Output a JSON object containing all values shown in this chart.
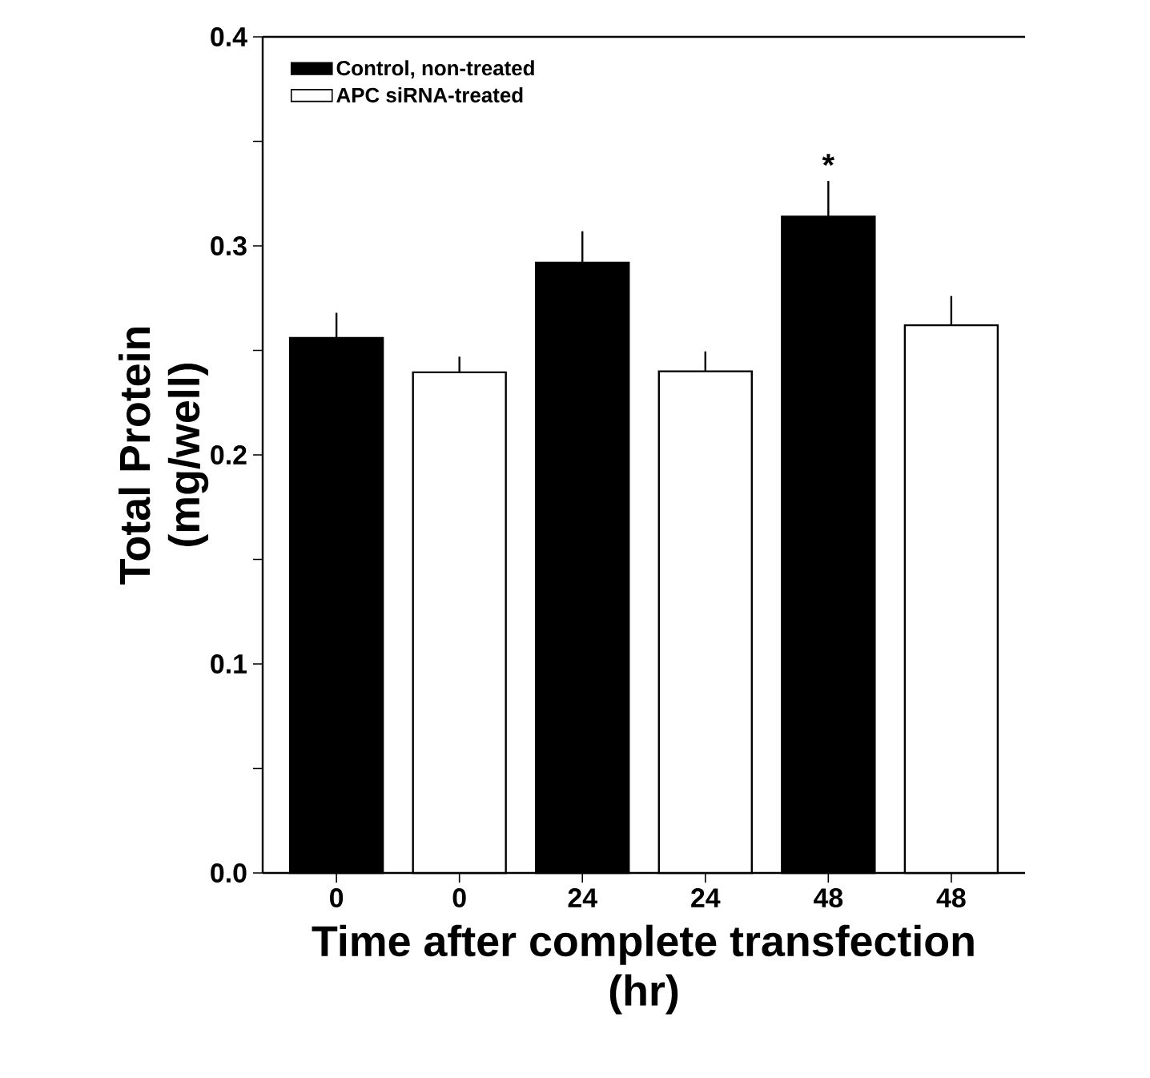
{
  "chart_data": {
    "type": "bar",
    "xlabel": "Time after complete transfection\n(hr)",
    "ylabel": "Total Protein\n(mg/well)",
    "categories": [
      "0",
      "0",
      "24",
      "24",
      "48",
      "48"
    ],
    "series": [
      {
        "name": "Control, non-treated",
        "color": "#000000",
        "values": [
          0.256,
          null,
          0.292,
          null,
          0.314,
          null
        ],
        "errors": [
          [
            0.256,
            0.268
          ],
          null,
          [
            0.292,
            0.307
          ],
          null,
          [
            0.314,
            0.331
          ],
          null
        ]
      },
      {
        "name": "APC siRNA-treated",
        "color": "#ffffff",
        "values": [
          null,
          0.2395,
          null,
          0.24,
          null,
          0.262
        ],
        "errors": [
          null,
          [
            0.2395,
            0.247
          ],
          null,
          [
            0.24,
            0.2495
          ],
          null,
          [
            0.262,
            0.276
          ]
        ]
      }
    ],
    "ylim": [
      0,
      0.4
    ],
    "yticks": [
      {
        "value": 0,
        "label": "0.0"
      },
      {
        "value": 0.05,
        "label": null
      },
      {
        "value": 0.1,
        "label": "0.1"
      },
      {
        "value": 0.15,
        "label": null
      },
      {
        "value": 0.2,
        "label": "0.2"
      },
      {
        "value": 0.25,
        "label": null
      },
      {
        "value": 0.3,
        "label": "0.3"
      },
      {
        "value": 0.35,
        "label": null
      },
      {
        "value": 0.4,
        "label": "0.4"
      }
    ],
    "annotations": [
      "*"
    ],
    "legend": "top left",
    "grid": false
  }
}
